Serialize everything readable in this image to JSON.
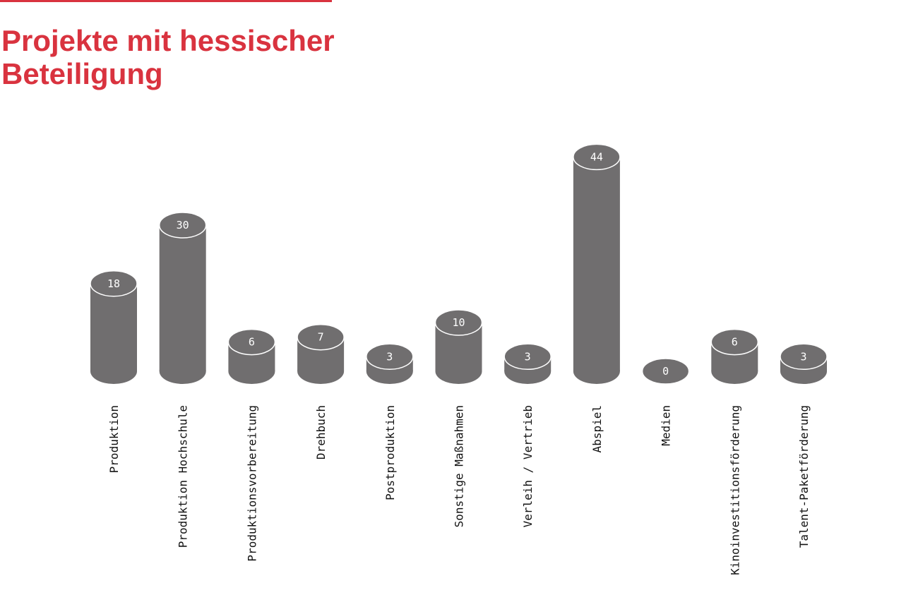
{
  "colors": {
    "accent": "#d9333f",
    "bar": "#706e6f",
    "bar_top_outline": "#ffffff",
    "label_text": "#111111"
  },
  "chart_data": {
    "type": "bar",
    "title": "Projekte mit hessischer Beteiligung",
    "xlabel": "",
    "ylabel": "",
    "grid": false,
    "legend": "none",
    "ylim": [
      0,
      44
    ],
    "categories": [
      "Produktion",
      "Produktion Hochschule",
      "Produktionsvorbereitung",
      "Drehbuch",
      "Postproduktion",
      "Sonstige Maßnahmen",
      "Verleih / Vertrieb",
      "Abspiel",
      "Medien",
      "Kinoinvestitionsförderung",
      "Talent-Paketförderung"
    ],
    "values": [
      18,
      30,
      6,
      7,
      3,
      10,
      3,
      44,
      0,
      6,
      3
    ]
  }
}
